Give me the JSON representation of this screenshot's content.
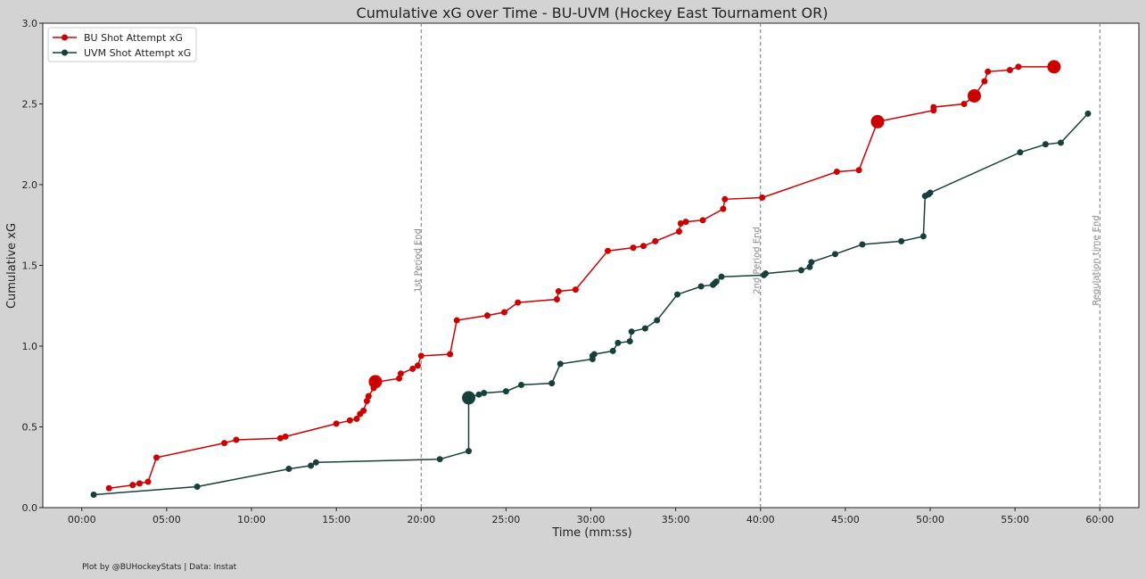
{
  "chart_data": {
    "type": "line",
    "title": "Cumulative xG over Time - BU-UVM (Hockey East Tournament OR)",
    "xlabel": "Time (mm:ss)",
    "ylabel": "Cumulative xG",
    "xlim": [
      -2.3,
      62.3
    ],
    "ylim": [
      0,
      3.0
    ],
    "x_ticks": [
      0,
      5,
      10,
      15,
      20,
      25,
      30,
      35,
      40,
      45,
      50,
      55,
      60
    ],
    "x_tick_labels": [
      "00:00",
      "05:00",
      "10:00",
      "15:00",
      "20:00",
      "25:00",
      "30:00",
      "35:00",
      "40:00",
      "45:00",
      "50:00",
      "55:00",
      "60:00"
    ],
    "y_ticks": [
      0,
      0.5,
      1.0,
      1.5,
      2.0,
      2.5,
      3.0
    ],
    "y_tick_labels": [
      "0.0",
      "0.5",
      "1.0",
      "1.5",
      "2.0",
      "2.5",
      "3.0"
    ],
    "grid": false,
    "legend_position": "top-left",
    "period_lines": [
      {
        "x": 20,
        "label": "1st Period End"
      },
      {
        "x": 40,
        "label": "2nd Period End"
      },
      {
        "x": 60,
        "label": "Regulation time End"
      }
    ],
    "series": [
      {
        "name": "BU Shot Attempt xG",
        "color": "#cc0000",
        "x": [
          1.6,
          3.0,
          3.4,
          3.9,
          4.4,
          8.4,
          9.1,
          11.7,
          12.0,
          15.0,
          15.8,
          16.2,
          16.4,
          16.6,
          16.8,
          16.9,
          17.2,
          17.5,
          18.7,
          18.8,
          19.5,
          19.8,
          20.0,
          21.7,
          22.1,
          23.9,
          24.9,
          25.7,
          28.0,
          28.1,
          29.1,
          31.0,
          32.5,
          33.1,
          33.8,
          35.2,
          35.3,
          35.6,
          36.6,
          37.8,
          37.9,
          40.1,
          44.5,
          45.8,
          46.9,
          50.2,
          50.2,
          52.0,
          52.6,
          53.2,
          53.4,
          54.7,
          55.2,
          57.3
        ],
        "y": [
          0.12,
          0.14,
          0.15,
          0.16,
          0.31,
          0.4,
          0.42,
          0.43,
          0.44,
          0.52,
          0.54,
          0.55,
          0.58,
          0.6,
          0.66,
          0.69,
          0.74,
          0.78,
          0.8,
          0.83,
          0.86,
          0.88,
          0.94,
          0.95,
          1.16,
          1.19,
          1.21,
          1.27,
          1.29,
          1.34,
          1.35,
          1.59,
          1.61,
          1.62,
          1.65,
          1.71,
          1.76,
          1.77,
          1.78,
          1.85,
          1.91,
          1.92,
          2.08,
          2.09,
          2.39,
          2.46,
          2.48,
          2.5,
          2.55,
          2.64,
          2.7,
          2.71,
          2.73,
          2.73
        ],
        "goals_x": [
          17.3,
          46.9,
          52.6,
          57.3
        ],
        "goals_y": [
          0.78,
          2.39,
          2.55,
          2.73
        ]
      },
      {
        "name": "UVM Shot Attempt xG",
        "color": "#17403a",
        "x": [
          0.7,
          6.8,
          12.2,
          13.5,
          13.8,
          21.1,
          22.8,
          22.8,
          23.4,
          23.7,
          25.0,
          25.9,
          27.7,
          28.2,
          30.1,
          30.1,
          30.2,
          31.3,
          31.6,
          32.3,
          32.4,
          33.2,
          33.9,
          35.1,
          36.5,
          37.2,
          37.3,
          37.4,
          37.7,
          40.2,
          40.3,
          42.4,
          42.9,
          43.0,
          44.4,
          46.0,
          48.3,
          49.6,
          49.7,
          49.9,
          50.0,
          55.3,
          56.8,
          57.7,
          59.3
        ],
        "y": [
          0.08,
          0.13,
          0.24,
          0.26,
          0.28,
          0.3,
          0.35,
          0.68,
          0.7,
          0.71,
          0.72,
          0.76,
          0.77,
          0.89,
          0.92,
          0.94,
          0.95,
          0.97,
          1.02,
          1.03,
          1.09,
          1.11,
          1.16,
          1.32,
          1.37,
          1.38,
          1.39,
          1.4,
          1.43,
          1.44,
          1.45,
          1.47,
          1.49,
          1.52,
          1.57,
          1.63,
          1.65,
          1.68,
          1.93,
          1.94,
          1.95,
          2.2,
          2.25,
          2.26,
          2.44
        ],
        "goals_x": [
          22.8
        ],
        "goals_y": [
          0.68
        ]
      }
    ]
  },
  "footer": {
    "credit": "Plot by @BUHockeyStats | Data: Instat"
  }
}
